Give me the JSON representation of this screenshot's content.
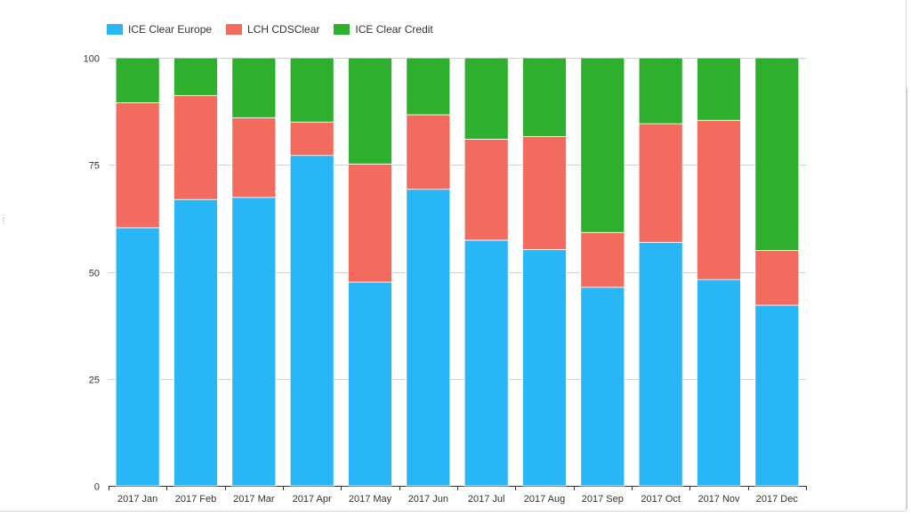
{
  "chart_data": {
    "type": "bar",
    "stacked": true,
    "categories": [
      "2017 Jan",
      "2017 Feb",
      "2017 Mar",
      "2017 Apr",
      "2017 May",
      "2017 Jun",
      "2017 Jul",
      "2017 Aug",
      "2017 Sep",
      "2017 Oct",
      "2017 Nov",
      "2017 Dec"
    ],
    "series": [
      {
        "name": "ICE Clear Europe",
        "color": "#29b6f6",
        "values": [
          60.3,
          66.9,
          67.4,
          77.2,
          47.6,
          69.3,
          57.4,
          55.2,
          46.4,
          56.9,
          48.2,
          42.2
        ]
      },
      {
        "name": "LCH CDSClear",
        "color": "#f26b5e",
        "values": [
          29.2,
          24.3,
          18.6,
          7.8,
          27.6,
          17.4,
          23.6,
          26.4,
          12.8,
          27.7,
          37.2,
          12.8
        ]
      },
      {
        "name": "ICE Clear Credit",
        "color": "#2eaf2e",
        "values": [
          10.5,
          8.8,
          14.0,
          15.0,
          24.8,
          13.3,
          19.0,
          18.4,
          40.8,
          15.4,
          14.6,
          45.0
        ]
      }
    ],
    "yticks": [
      0,
      25,
      50,
      75,
      100
    ],
    "ylim": [
      0,
      100
    ],
    "grid": true,
    "legend_position": "top-left"
  }
}
